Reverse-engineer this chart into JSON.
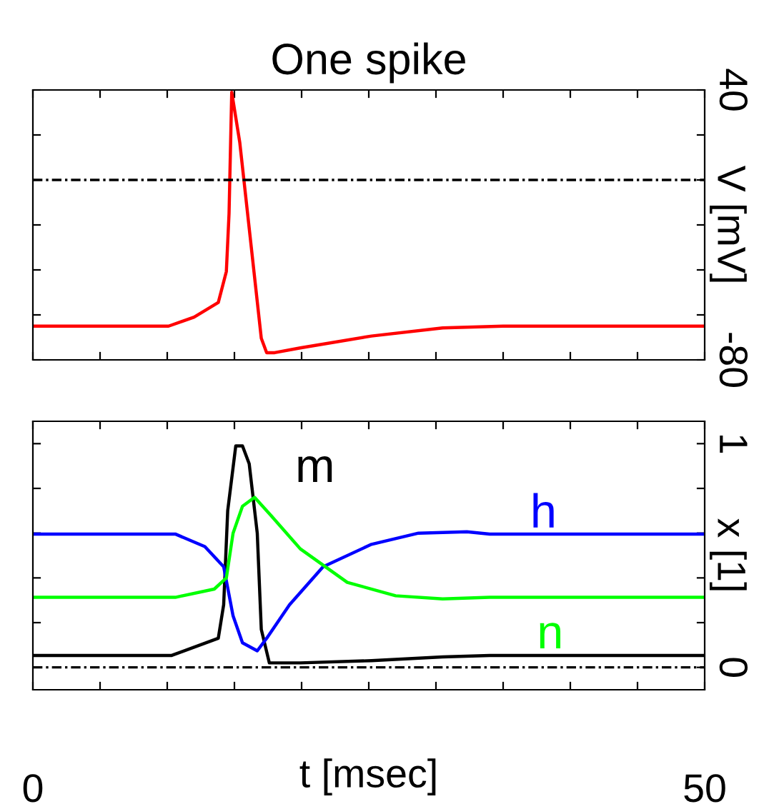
{
  "chart_data": [
    {
      "type": "line",
      "title": "One spike",
      "ylabel": "V [mV]",
      "xlim": [
        0,
        50
      ],
      "ylim": [
        -80,
        40
      ],
      "xticks": [
        {
          "value": 0,
          "label": null
        },
        {
          "value": 5,
          "label": null
        },
        {
          "value": 10,
          "label": null
        },
        {
          "value": 15,
          "label": null
        },
        {
          "value": 20,
          "label": null
        },
        {
          "value": 25,
          "label": null
        },
        {
          "value": 30,
          "label": null
        },
        {
          "value": 35,
          "label": null
        },
        {
          "value": 40,
          "label": null
        },
        {
          "value": 45,
          "label": null
        },
        {
          "value": 50,
          "label": null
        }
      ],
      "yticks": [
        {
          "value": -80,
          "label": "-80"
        },
        {
          "value": -60,
          "label": null
        },
        {
          "value": -40,
          "label": null
        },
        {
          "value": -20,
          "label": null
        },
        {
          "value": 0,
          "label": null
        },
        {
          "value": 20,
          "label": null
        },
        {
          "value": 40,
          "label": "40"
        }
      ],
      "tick_labels": "y",
      "grid": false,
      "legend": false,
      "marker": "none",
      "ref_lines": [
        {
          "axis": "y",
          "value": 0,
          "color": "#000000",
          "line_style": "dashdot"
        }
      ],
      "series": [
        {
          "color": "#ff0000",
          "x": [
            0,
            10.1,
            12.0,
            13.8,
            14.4,
            14.6,
            14.8,
            15.4,
            17.0,
            17.4,
            18.0,
            19.9,
            25.2,
            30.5,
            35,
            50
          ],
          "values": [
            -65,
            -65,
            -61,
            -54.5,
            -40.7,
            -15,
            39,
            16.6,
            -70.4,
            -76.8,
            -76.8,
            -74.7,
            -69.4,
            -65.8,
            -65,
            -65
          ]
        }
      ]
    },
    {
      "type": "line",
      "xlabel": "t [msec]",
      "ylabel": "x [1]",
      "xlim": [
        0,
        50
      ],
      "ylim": [
        -0.1,
        1.1
      ],
      "xticks": [
        {
          "value": 0,
          "label": "0"
        },
        {
          "value": 5,
          "label": null
        },
        {
          "value": 10,
          "label": null
        },
        {
          "value": 15,
          "label": null
        },
        {
          "value": 20,
          "label": null
        },
        {
          "value": 25,
          "label": null
        },
        {
          "value": 30,
          "label": null
        },
        {
          "value": 35,
          "label": null
        },
        {
          "value": 40,
          "label": null
        },
        {
          "value": 45,
          "label": null
        },
        {
          "value": 50,
          "label": "50"
        }
      ],
      "yticks": [
        {
          "value": 0,
          "label": "0"
        },
        {
          "value": 0.2,
          "label": null
        },
        {
          "value": 0.4,
          "label": null
        },
        {
          "value": 0.6,
          "label": null
        },
        {
          "value": 0.8,
          "label": null
        },
        {
          "value": 1,
          "label": "1"
        }
      ],
      "grid": false,
      "marker": "none",
      "ref_lines": [
        {
          "axis": "y",
          "value": 0,
          "color": "#000000",
          "line_style": "dashdot"
        }
      ],
      "series": [
        {
          "name": "m",
          "color": "#000000",
          "x": [
            0,
            10.3,
            13.8,
            14.2,
            14.5,
            15.1,
            15.6,
            16.1,
            16.7,
            17.0,
            17.6,
            19.9,
            25.2,
            30.5,
            34.0,
            50
          ],
          "values": [
            0.053,
            0.053,
            0.13,
            0.28,
            0.7,
            0.99,
            0.99,
            0.91,
            0.6,
            0.17,
            0.02,
            0.02,
            0.03,
            0.047,
            0.053,
            0.053
          ]
        },
        {
          "name": "h",
          "color": "#0000ff",
          "x": [
            0,
            10.6,
            12.8,
            14.2,
            14.9,
            15.6,
            16.7,
            17.4,
            19.1,
            21.6,
            25.2,
            28.7,
            32.3,
            34.0,
            50
          ],
          "values": [
            0.596,
            0.596,
            0.54,
            0.45,
            0.23,
            0.11,
            0.074,
            0.13,
            0.28,
            0.45,
            0.55,
            0.6,
            0.606,
            0.596,
            0.596
          ]
        },
        {
          "name": "n",
          "color": "#00ff00",
          "x": [
            0,
            10.6,
            13.5,
            14.4,
            14.9,
            15.6,
            16.5,
            17.7,
            19.9,
            23.4,
            27.0,
            30.5,
            34.0,
            50
          ],
          "values": [
            0.313,
            0.313,
            0.35,
            0.4,
            0.6,
            0.72,
            0.76,
            0.68,
            0.53,
            0.38,
            0.32,
            0.306,
            0.313,
            0.313
          ]
        }
      ]
    }
  ]
}
